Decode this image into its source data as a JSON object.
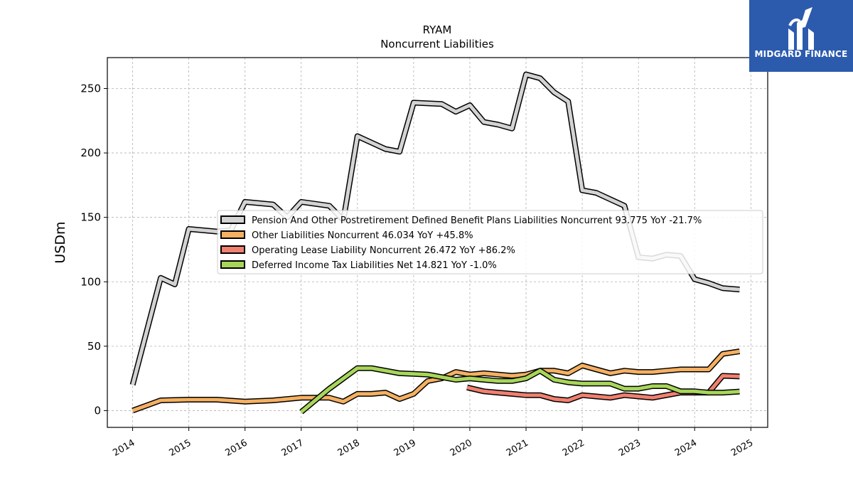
{
  "chart_data": {
    "type": "line",
    "title": "RYAM",
    "subtitle": "Noncurrent  Liabilities",
    "ylabel": "USDm",
    "xlabel": "",
    "xlim": [
      2013.55,
      2025.3
    ],
    "ylim": [
      -13,
      274
    ],
    "x_ticks": [
      2014,
      2015,
      2016,
      2017,
      2018,
      2019,
      2020,
      2021,
      2022,
      2023,
      2024,
      2025
    ],
    "y_ticks": [
      0,
      50,
      100,
      150,
      200,
      250
    ],
    "grid": true,
    "legend_position": "center-right",
    "series": [
      {
        "name": "Pension And Other Postretirement Defined Benefit Plans Liabilities Noncurrent  93.775 YoY -21.7%",
        "color": "#d3d3d3",
        "points": [
          [
            2014.0,
            20
          ],
          [
            2014.5,
            103
          ],
          [
            2014.75,
            98
          ],
          [
            2015.0,
            141
          ],
          [
            2015.5,
            139
          ],
          [
            2015.75,
            140
          ],
          [
            2016.0,
            162
          ],
          [
            2016.5,
            160
          ],
          [
            2016.75,
            150
          ],
          [
            2017.0,
            162
          ],
          [
            2017.5,
            159
          ],
          [
            2017.75,
            148
          ],
          [
            2018.0,
            213
          ],
          [
            2018.5,
            203
          ],
          [
            2018.75,
            201
          ],
          [
            2019.0,
            239
          ],
          [
            2019.5,
            238
          ],
          [
            2019.75,
            232
          ],
          [
            2020.0,
            237
          ],
          [
            2020.25,
            224
          ],
          [
            2020.5,
            222
          ],
          [
            2020.75,
            219
          ],
          [
            2021.0,
            261
          ],
          [
            2021.25,
            258
          ],
          [
            2021.5,
            247
          ],
          [
            2021.75,
            240
          ],
          [
            2022.0,
            171
          ],
          [
            2022.25,
            169
          ],
          [
            2022.5,
            164
          ],
          [
            2022.75,
            159
          ],
          [
            2023.0,
            119
          ],
          [
            2023.25,
            118
          ],
          [
            2023.5,
            121
          ],
          [
            2023.75,
            120
          ],
          [
            2024.0,
            102
          ],
          [
            2024.25,
            99
          ],
          [
            2024.5,
            95
          ],
          [
            2024.8,
            94
          ]
        ]
      },
      {
        "name": "Other Liabilities Noncurrent  46.034 YoY +45.8%",
        "color": "#f5b062",
        "points": [
          [
            2014.0,
            0
          ],
          [
            2014.5,
            8
          ],
          [
            2015.0,
            8.5
          ],
          [
            2015.5,
            8.5
          ],
          [
            2016.0,
            7
          ],
          [
            2016.5,
            8
          ],
          [
            2017.0,
            10
          ],
          [
            2017.5,
            10
          ],
          [
            2017.75,
            7
          ],
          [
            2018.0,
            13
          ],
          [
            2018.25,
            13
          ],
          [
            2018.5,
            14
          ],
          [
            2018.75,
            9
          ],
          [
            2019.0,
            13
          ],
          [
            2019.25,
            23
          ],
          [
            2019.5,
            25
          ],
          [
            2019.75,
            30
          ],
          [
            2020.0,
            28
          ],
          [
            2020.25,
            29
          ],
          [
            2020.5,
            28
          ],
          [
            2020.75,
            27
          ],
          [
            2021.0,
            28
          ],
          [
            2021.25,
            31
          ],
          [
            2021.5,
            31
          ],
          [
            2021.75,
            29
          ],
          [
            2022.0,
            35
          ],
          [
            2022.25,
            32
          ],
          [
            2022.5,
            29
          ],
          [
            2022.75,
            31
          ],
          [
            2023.0,
            30
          ],
          [
            2023.25,
            30
          ],
          [
            2023.5,
            31
          ],
          [
            2023.75,
            32
          ],
          [
            2024.0,
            32
          ],
          [
            2024.25,
            32
          ],
          [
            2024.5,
            44
          ],
          [
            2024.8,
            46
          ]
        ]
      },
      {
        "name": "Operating Lease Liability Noncurrent  26.472 YoY +86.2%",
        "color": "#f08070",
        "points": [
          [
            2019.95,
            18
          ],
          [
            2020.25,
            15
          ],
          [
            2020.5,
            14
          ],
          [
            2020.75,
            13
          ],
          [
            2021.0,
            12
          ],
          [
            2021.25,
            12
          ],
          [
            2021.5,
            9
          ],
          [
            2021.75,
            8
          ],
          [
            2022.0,
            12
          ],
          [
            2022.25,
            11
          ],
          [
            2022.5,
            10
          ],
          [
            2022.75,
            12
          ],
          [
            2023.0,
            11
          ],
          [
            2023.25,
            10
          ],
          [
            2023.5,
            12
          ],
          [
            2023.75,
            14
          ],
          [
            2024.0,
            14
          ],
          [
            2024.25,
            14
          ],
          [
            2024.5,
            27
          ],
          [
            2024.8,
            26.5
          ]
        ]
      },
      {
        "name": "Deferred Income Tax Liabilities Net  14.821 YoY -1.0%",
        "color": "#a8d65a",
        "points": [
          [
            2017.0,
            -1
          ],
          [
            2017.5,
            17
          ],
          [
            2017.75,
            25
          ],
          [
            2018.0,
            33
          ],
          [
            2018.25,
            33
          ],
          [
            2018.5,
            31
          ],
          [
            2018.75,
            29
          ],
          [
            2019.0,
            28.5
          ],
          [
            2019.25,
            28
          ],
          [
            2019.5,
            26
          ],
          [
            2019.75,
            24
          ],
          [
            2020.0,
            25
          ],
          [
            2020.25,
            24
          ],
          [
            2020.5,
            23
          ],
          [
            2020.75,
            23
          ],
          [
            2021.0,
            25
          ],
          [
            2021.25,
            31
          ],
          [
            2021.5,
            24
          ],
          [
            2021.75,
            22
          ],
          [
            2022.0,
            21
          ],
          [
            2022.25,
            21
          ],
          [
            2022.5,
            21
          ],
          [
            2022.75,
            17
          ],
          [
            2023.0,
            17
          ],
          [
            2023.25,
            19
          ],
          [
            2023.5,
            19
          ],
          [
            2023.75,
            15
          ],
          [
            2024.0,
            15
          ],
          [
            2024.25,
            14
          ],
          [
            2024.5,
            14
          ],
          [
            2024.8,
            14.8
          ]
        ]
      }
    ]
  },
  "logo": {
    "text": "MIDGARD FINANCE",
    "icon": "midgard-logo-icon",
    "color": "#2c5bae"
  }
}
